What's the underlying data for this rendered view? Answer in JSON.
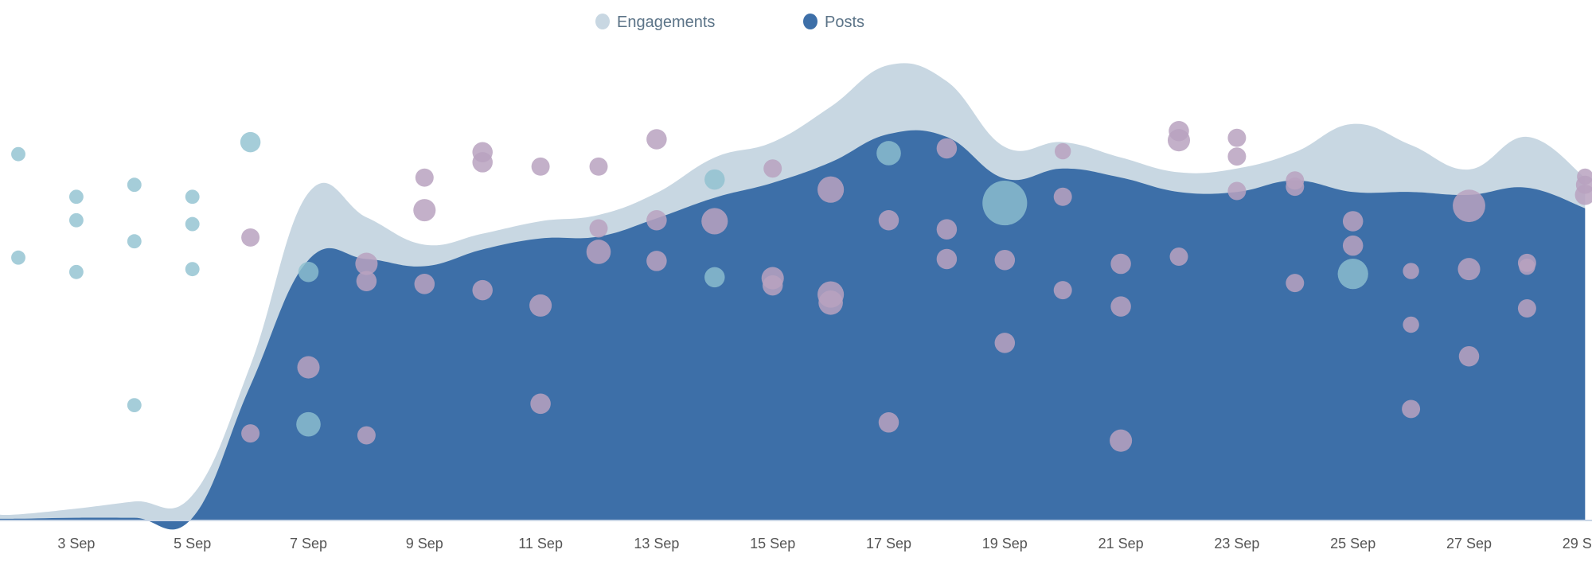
{
  "chart_data": {
    "type": "area",
    "title": "",
    "xlabel": "",
    "ylabel": "",
    "ylim": [
      0,
      100
    ],
    "grid": false,
    "legend_position": "top-center",
    "x_days": [
      2,
      3,
      4,
      5,
      6,
      7,
      8,
      9,
      10,
      11,
      12,
      13,
      14,
      15,
      16,
      17,
      18,
      19,
      20,
      21,
      22,
      23,
      24,
      25,
      26,
      27,
      28,
      29
    ],
    "tick_labels": [
      "3 Sep",
      "5 Sep",
      "7 Sep",
      "9 Sep",
      "11 Sep",
      "13 Sep",
      "15 Sep",
      "17 Sep",
      "19 Sep",
      "21 Sep",
      "23 Sep",
      "25 Sep",
      "27 Sep",
      "29 Sep"
    ],
    "tick_days": [
      3,
      5,
      7,
      9,
      11,
      13,
      15,
      17,
      19,
      21,
      23,
      25,
      27,
      29
    ],
    "series": [
      {
        "name": "Engagements",
        "color": "#c8d7e2",
        "values": [
          1.1,
          2.3,
          3.8,
          5.1,
          32.2,
          68.2,
          63.1,
          57.4,
          59.7,
          62.3,
          63.6,
          68.2,
          75.6,
          78.8,
          86.2,
          94.9,
          91.5,
          77.8,
          78.8,
          75.6,
          72.5,
          73.3,
          76.7,
          82.6,
          78.2,
          73.1,
          79.9,
          71.4
        ]
      },
      {
        "name": "Posts",
        "color": "#3d6fa8",
        "values": [
          0.2,
          0.4,
          0.4,
          0.4,
          28.0,
          54.2,
          54.4,
          52.9,
          56.4,
          58.7,
          59.1,
          62.9,
          67.2,
          70.3,
          74.6,
          80.5,
          79.9,
          71.2,
          73.3,
          71.4,
          68.4,
          68.4,
          70.8,
          68.4,
          68.4,
          67.8,
          69.3,
          65.0
        ]
      }
    ],
    "bubbles": {
      "teal_color": "#8fc0d0",
      "mauve_color": "#b9a2bf",
      "teal": [
        [
          2,
          76.3,
          7
        ],
        [
          2,
          54.7,
          7
        ],
        [
          3,
          67.4,
          7
        ],
        [
          3,
          62.5,
          7
        ],
        [
          3,
          51.7,
          7
        ],
        [
          4,
          69.9,
          7
        ],
        [
          4,
          58.1,
          7
        ],
        [
          4,
          23.9,
          7
        ],
        [
          5,
          67.4,
          7
        ],
        [
          5,
          61.7,
          7
        ],
        [
          5,
          52.3,
          7
        ],
        [
          6,
          78.8,
          10
        ],
        [
          7,
          51.7,
          10
        ],
        [
          7,
          19.9,
          12
        ],
        [
          14,
          71.0,
          10
        ],
        [
          14,
          50.6,
          10
        ],
        [
          17,
          76.5,
          12
        ],
        [
          19,
          66.1,
          22
        ],
        [
          25,
          51.3,
          15
        ]
      ],
      "mauve": [
        [
          6,
          58.9,
          9
        ],
        [
          6,
          18.0,
          9
        ],
        [
          7,
          31.8,
          11
        ],
        [
          8,
          53.4,
          11
        ],
        [
          8,
          49.8,
          10
        ],
        [
          8,
          17.6,
          9
        ],
        [
          9,
          71.4,
          9
        ],
        [
          9,
          64.6,
          11
        ],
        [
          9,
          49.2,
          10
        ],
        [
          10,
          76.7,
          10
        ],
        [
          10,
          74.6,
          10
        ],
        [
          10,
          47.9,
          10
        ],
        [
          11,
          73.7,
          9
        ],
        [
          11,
          44.7,
          11
        ],
        [
          11,
          24.2,
          10
        ],
        [
          12,
          73.7,
          9
        ],
        [
          12,
          60.8,
          9
        ],
        [
          12,
          55.9,
          12
        ],
        [
          13,
          79.4,
          10
        ],
        [
          13,
          62.5,
          10
        ],
        [
          13,
          54.0,
          10
        ],
        [
          14,
          62.3,
          13
        ],
        [
          15,
          73.3,
          9
        ],
        [
          15,
          50.4,
          11
        ],
        [
          15,
          48.9,
          10
        ],
        [
          16,
          68.9,
          13
        ],
        [
          16,
          47.0,
          13
        ],
        [
          16,
          45.3,
          12
        ],
        [
          17,
          62.5,
          10
        ],
        [
          17,
          20.3,
          10
        ],
        [
          18,
          77.5,
          10
        ],
        [
          18,
          60.6,
          10
        ],
        [
          18,
          54.4,
          10
        ],
        [
          19,
          54.2,
          10
        ],
        [
          19,
          36.9,
          10
        ],
        [
          20,
          76.9,
          8
        ],
        [
          20,
          67.4,
          9
        ],
        [
          20,
          47.9,
          9
        ],
        [
          21,
          53.4,
          10
        ],
        [
          21,
          44.5,
          10
        ],
        [
          21,
          16.5,
          11
        ],
        [
          22,
          81.1,
          10
        ],
        [
          22,
          79.2,
          11
        ],
        [
          22,
          54.9,
          9
        ],
        [
          23,
          79.7,
          9
        ],
        [
          23,
          75.8,
          9
        ],
        [
          23,
          68.6,
          9
        ],
        [
          24,
          70.8,
          9
        ],
        [
          24,
          69.5,
          9
        ],
        [
          24,
          49.4,
          9
        ],
        [
          25,
          62.3,
          10
        ],
        [
          25,
          57.2,
          10
        ],
        [
          26,
          51.9,
          8
        ],
        [
          26,
          40.7,
          8
        ],
        [
          26,
          23.1,
          9
        ],
        [
          27,
          65.5,
          16
        ],
        [
          27,
          52.3,
          11
        ],
        [
          27,
          34.1,
          10
        ],
        [
          28,
          53.6,
          9
        ],
        [
          28,
          52.8,
          8
        ],
        [
          28,
          44.1,
          9
        ],
        [
          29,
          71.6,
          8
        ],
        [
          29,
          69.9,
          9
        ],
        [
          29,
          67.8,
          10
        ]
      ]
    }
  }
}
